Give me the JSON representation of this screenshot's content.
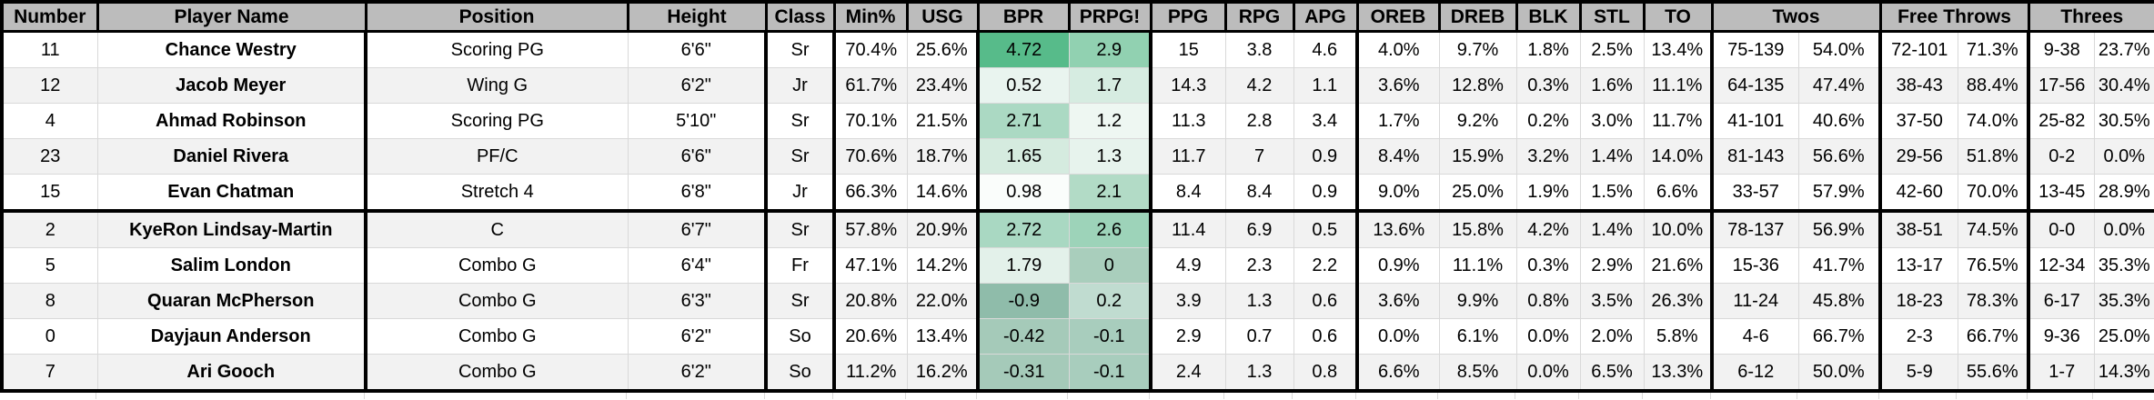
{
  "chart_data": {
    "type": "table",
    "title": "Basketball roster player statistics",
    "columns": [
      "Number",
      "Player Name",
      "Position",
      "Height",
      "Class",
      "Min%",
      "USG",
      "BPR",
      "PRPG!",
      "PPG",
      "RPG",
      "APG",
      "OREB",
      "DREB",
      "BLK",
      "STL",
      "TO",
      "Twos",
      "Free Throws",
      "Threes"
    ],
    "grouped_columns": {
      "Twos": [
        "made-attempted",
        "percent"
      ],
      "Free Throws": [
        "made-attempted",
        "percent"
      ],
      "Threes": [
        "made-attempted",
        "percent"
      ]
    },
    "heatmap_columns": [
      "BPR",
      "PRPG!"
    ],
    "rows": [
      {
        "number": "11",
        "name": "Chance Westry",
        "position": "Scoring PG",
        "height": "6'6\"",
        "class": "Sr",
        "min_pct": "70.4%",
        "usg": "25.6%",
        "bpr": "4.72",
        "bpr_bg": "#57bb8a",
        "prpg": "2.9",
        "prpg_bg": "#91d1b1",
        "ppg": "15",
        "rpg": "3.8",
        "apg": "4.6",
        "oreb": "4.0%",
        "dreb": "9.7%",
        "blk": "1.8%",
        "stl": "2.5%",
        "to": "13.4%",
        "twos_made": "75-139",
        "twos_pct": "54.0%",
        "ft_made": "72-101",
        "ft_pct": "71.3%",
        "threes_made": "9-38",
        "threes_pct": "23.7%"
      },
      {
        "number": "12",
        "name": "Jacob Meyer",
        "position": "Wing G",
        "height": "6'2\"",
        "class": "Jr",
        "min_pct": "61.7%",
        "usg": "23.4%",
        "bpr": "0.52",
        "bpr_bg": "#e9f4ef",
        "prpg": "1.7",
        "prpg_bg": "#d6ece1",
        "ppg": "14.3",
        "rpg": "4.2",
        "apg": "1.1",
        "oreb": "3.6%",
        "dreb": "12.8%",
        "blk": "0.3%",
        "stl": "1.6%",
        "to": "11.1%",
        "twos_made": "64-135",
        "twos_pct": "47.4%",
        "ft_made": "38-43",
        "ft_pct": "88.4%",
        "threes_made": "17-56",
        "threes_pct": "30.4%"
      },
      {
        "number": "4",
        "name": "Ahmad Robinson",
        "position": "Scoring PG",
        "height": "5'10\"",
        "class": "Sr",
        "min_pct": "70.1%",
        "usg": "21.5%",
        "bpr": "2.71",
        "bpr_bg": "#abd9c3",
        "prpg": "1.2",
        "prpg_bg": "#eef7f2",
        "ppg": "11.3",
        "rpg": "2.8",
        "apg": "3.4",
        "oreb": "1.7%",
        "dreb": "9.2%",
        "blk": "0.2%",
        "stl": "3.0%",
        "to": "11.7%",
        "twos_made": "41-101",
        "twos_pct": "40.6%",
        "ft_made": "37-50",
        "ft_pct": "74.0%",
        "threes_made": "25-82",
        "threes_pct": "30.5%"
      },
      {
        "number": "23",
        "name": "Daniel Rivera",
        "position": "PF/C",
        "height": "6'6\"",
        "class": "Sr",
        "min_pct": "70.6%",
        "usg": "18.7%",
        "bpr": "1.65",
        "bpr_bg": "#d5ebdf",
        "prpg": "1.3",
        "prpg_bg": "#e7f3ed",
        "ppg": "11.7",
        "rpg": "7",
        "apg": "0.9",
        "oreb": "8.4%",
        "dreb": "15.9%",
        "blk": "3.2%",
        "stl": "1.4%",
        "to": "14.0%",
        "twos_made": "81-143",
        "twos_pct": "56.6%",
        "ft_made": "29-56",
        "ft_pct": "51.8%",
        "threes_made": "0-2",
        "threes_pct": "0.0%"
      },
      {
        "number": "15",
        "name": "Evan Chatman",
        "position": "Stretch 4",
        "height": "6'8\"",
        "class": "Jr",
        "min_pct": "66.3%",
        "usg": "14.6%",
        "bpr": "0.98",
        "bpr_bg": "#fafdfb",
        "prpg": "2.1",
        "prpg_bg": "#b2dbc6",
        "ppg": "8.4",
        "rpg": "8.4",
        "apg": "0.9",
        "oreb": "9.0%",
        "dreb": "25.0%",
        "blk": "1.9%",
        "stl": "1.5%",
        "to": "6.6%",
        "twos_made": "33-57",
        "twos_pct": "57.9%",
        "ft_made": "42-60",
        "ft_pct": "70.0%",
        "threes_made": "13-45",
        "threes_pct": "28.9%"
      },
      {
        "number": "2",
        "name": "KyeRon Lindsay-Martin",
        "position": "C",
        "height": "6'7\"",
        "class": "Sr",
        "min_pct": "57.8%",
        "usg": "20.9%",
        "bpr": "2.72",
        "bpr_bg": "#a9d8c2",
        "prpg": "2.6",
        "prpg_bg": "#9dd3b9",
        "ppg": "11.4",
        "rpg": "6.9",
        "apg": "0.5",
        "oreb": "13.6%",
        "dreb": "15.8%",
        "blk": "4.2%",
        "stl": "1.4%",
        "to": "10.0%",
        "twos_made": "78-137",
        "twos_pct": "56.9%",
        "ft_made": "38-51",
        "ft_pct": "74.5%",
        "threes_made": "0-0",
        "threes_pct": "0.0%"
      },
      {
        "number": "5",
        "name": "Salim London",
        "position": "Combo G",
        "height": "6'4\"",
        "class": "Fr",
        "min_pct": "47.1%",
        "usg": "14.2%",
        "bpr": "1.79",
        "bpr_bg": "#e3f1ea",
        "prpg": "0",
        "prpg_bg": "#a9cebc",
        "ppg": "4.9",
        "rpg": "2.3",
        "apg": "2.2",
        "oreb": "0.9%",
        "dreb": "11.1%",
        "blk": "0.3%",
        "stl": "2.9%",
        "to": "21.6%",
        "twos_made": "15-36",
        "twos_pct": "41.7%",
        "ft_made": "13-17",
        "ft_pct": "76.5%",
        "threes_made": "12-34",
        "threes_pct": "35.3%"
      },
      {
        "number": "8",
        "name": "Quaran McPherson",
        "position": "Combo G",
        "height": "6'3\"",
        "class": "Sr",
        "min_pct": "20.8%",
        "usg": "22.0%",
        "bpr": "-0.9",
        "bpr_bg": "#8fbcaa",
        "prpg": "0.2",
        "prpg_bg": "#c0dcd0",
        "ppg": "3.9",
        "rpg": "1.3",
        "apg": "0.6",
        "oreb": "3.6%",
        "dreb": "9.9%",
        "blk": "0.8%",
        "stl": "3.5%",
        "to": "26.3%",
        "twos_made": "11-24",
        "twos_pct": "45.8%",
        "ft_made": "18-23",
        "ft_pct": "78.3%",
        "threes_made": "6-17",
        "threes_pct": "35.3%"
      },
      {
        "number": "0",
        "name": "Dayjaun Anderson",
        "position": "Combo G",
        "height": "6'2\"",
        "class": "So",
        "min_pct": "20.6%",
        "usg": "13.4%",
        "bpr": "-0.42",
        "bpr_bg": "#a5cab9",
        "prpg": "-0.1",
        "prpg_bg": "#a8cdbd",
        "ppg": "2.9",
        "rpg": "0.7",
        "apg": "0.6",
        "oreb": "0.0%",
        "dreb": "6.1%",
        "blk": "0.0%",
        "stl": "2.0%",
        "to": "5.8%",
        "twos_made": "4-6",
        "twos_pct": "66.7%",
        "ft_made": "2-3",
        "ft_pct": "66.7%",
        "threes_made": "9-36",
        "threes_pct": "25.0%"
      },
      {
        "number": "7",
        "name": "Ari Gooch",
        "position": "Combo G",
        "height": "6'2\"",
        "class": "So",
        "min_pct": "11.2%",
        "usg": "16.2%",
        "bpr": "-0.31",
        "bpr_bg": "#a5cab9",
        "prpg": "-0.1",
        "prpg_bg": "#a8cdbd",
        "ppg": "2.4",
        "rpg": "1.3",
        "apg": "0.8",
        "oreb": "6.6%",
        "dreb": "8.5%",
        "blk": "0.0%",
        "stl": "6.5%",
        "to": "13.3%",
        "twos_made": "6-12",
        "twos_pct": "50.0%",
        "ft_made": "5-9",
        "ft_pct": "55.6%",
        "threes_made": "1-7",
        "threes_pct": "14.3%"
      }
    ],
    "colors": {
      "header_bg": "#bcbcbc",
      "row_bg": "#ffffff",
      "row_shaded_bg": "#f2f2f2",
      "grid_line": "#d9d9d9",
      "border": "#000000",
      "heatmap_max_green": "#57bb8a"
    }
  }
}
